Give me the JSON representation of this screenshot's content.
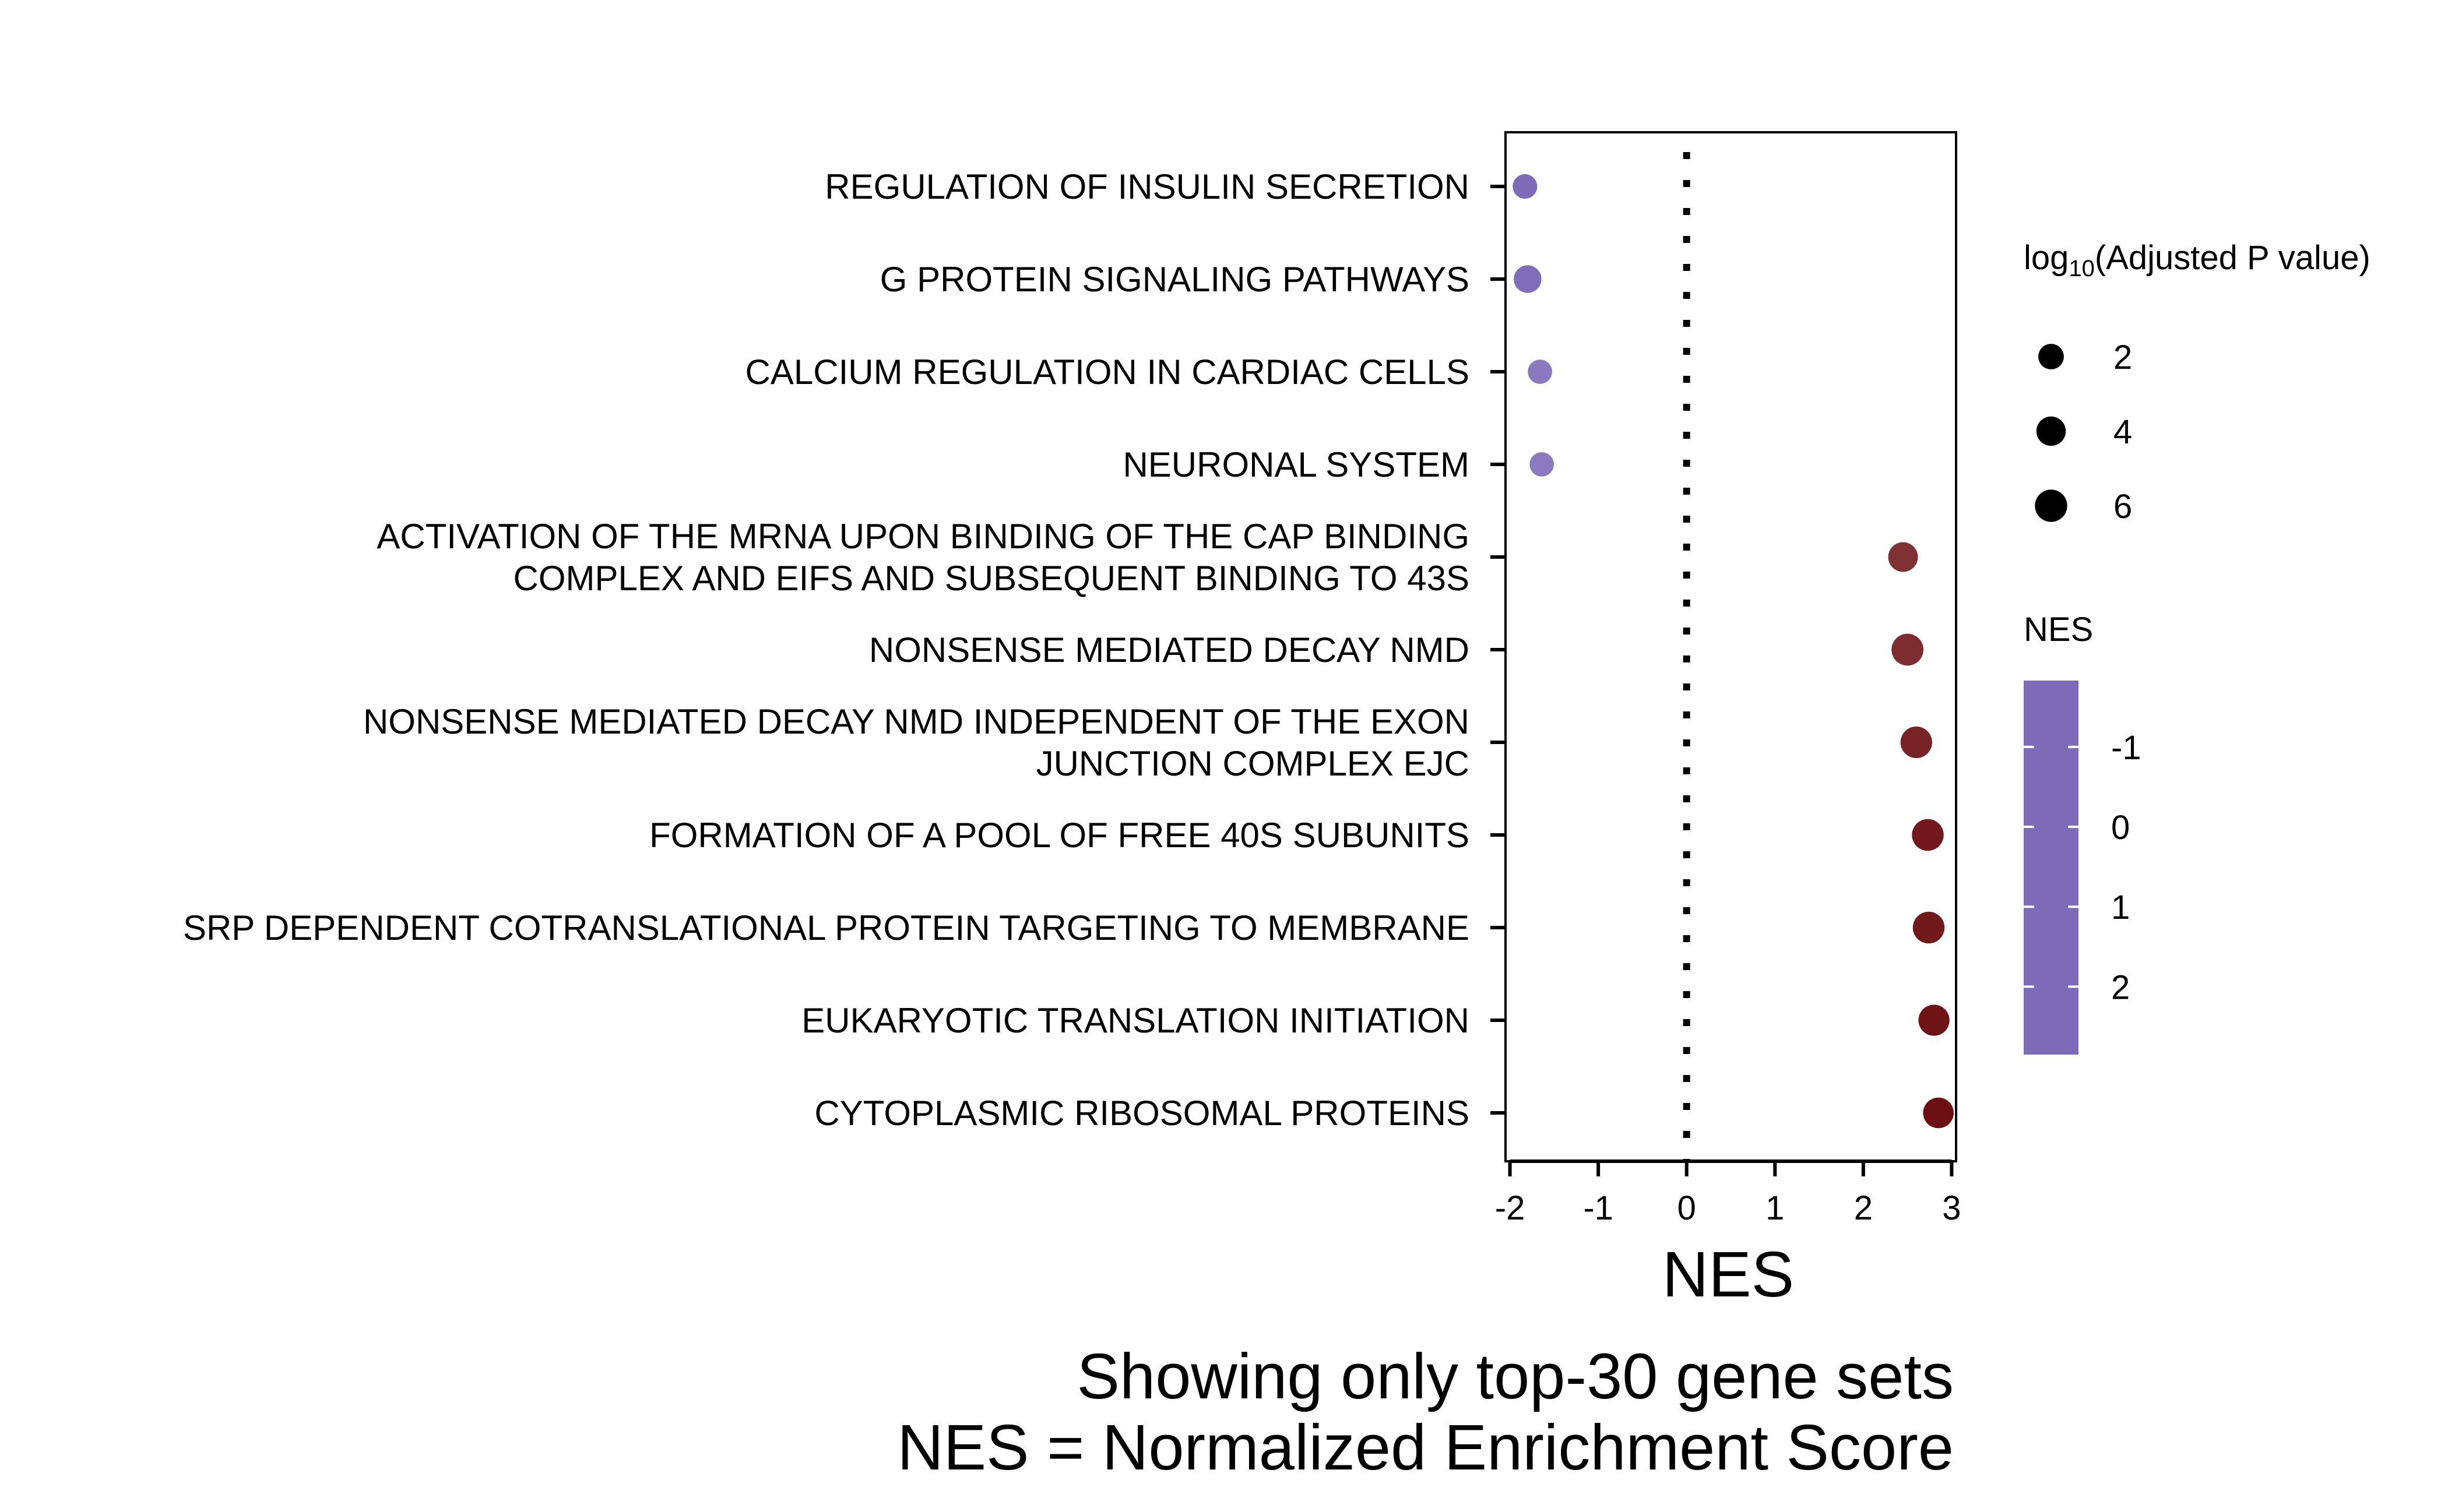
{
  "chart_data": {
    "type": "scatter",
    "xlabel": "NES",
    "ylabel": "",
    "xlim": [
      -2.05,
      3.05
    ],
    "x_ticks": [
      "-2",
      "-1",
      "0",
      "1",
      "2",
      "3"
    ],
    "reference_line": {
      "x": 0,
      "style": "dotted"
    },
    "caption": [
      "Showing only top-30 gene sets",
      "NES = Normalized Enrichment Score"
    ],
    "categories": [
      [
        "REGULATION OF INSULIN SECRETION"
      ],
      [
        "G PROTEIN SIGNALING PATHWAYS"
      ],
      [
        "CALCIUM REGULATION IN CARDIAC CELLS"
      ],
      [
        "NEURONAL SYSTEM"
      ],
      [
        "ACTIVATION OF THE MRNA UPON BINDING OF THE CAP BINDING",
        "COMPLEX AND EIFS AND SUBSEQUENT BINDING TO 43S"
      ],
      [
        "NONSENSE MEDIATED DECAY NMD"
      ],
      [
        "NONSENSE MEDIATED DECAY NMD INDEPENDENT OF THE EXON",
        "JUNCTION COMPLEX EJC"
      ],
      [
        "FORMATION OF A POOL OF FREE 40S SUBUNITS"
      ],
      [
        "SRP DEPENDENT COTRANSLATIONAL PROTEIN TARGETING TO MEMBRANE"
      ],
      [
        "EUKARYOTIC TRANSLATION INITIATION"
      ],
      [
        "CYTOPLASMIC RIBOSOMAL PROTEINS"
      ]
    ],
    "nes": [
      -1.83,
      -1.8,
      -1.66,
      -1.64,
      2.45,
      2.5,
      2.6,
      2.73,
      2.74,
      2.8,
      2.85
    ],
    "log10_adj_p": [
      1.6,
      3.0,
      1.5,
      1.5,
      4.2,
      5.7,
      5.5,
      5.6,
      5.6,
      5.1,
      4.8
    ],
    "size_legend": {
      "title_prefix": "log",
      "title_subscript": "10",
      "title_suffix": "(Adjusted P value)",
      "values": [
        2,
        4,
        6
      ],
      "labels": [
        "2",
        "4",
        "6"
      ]
    },
    "color_legend": {
      "title": "NES",
      "low_color": "#7d6bb8",
      "mid_color": "#ffffff",
      "high_color": "#6b0f12",
      "range": [
        -1.83,
        2.85
      ],
      "tick_values": [
        -1,
        0,
        1,
        2
      ],
      "tick_labels": [
        "-1",
        "0",
        "1",
        "2"
      ]
    }
  }
}
